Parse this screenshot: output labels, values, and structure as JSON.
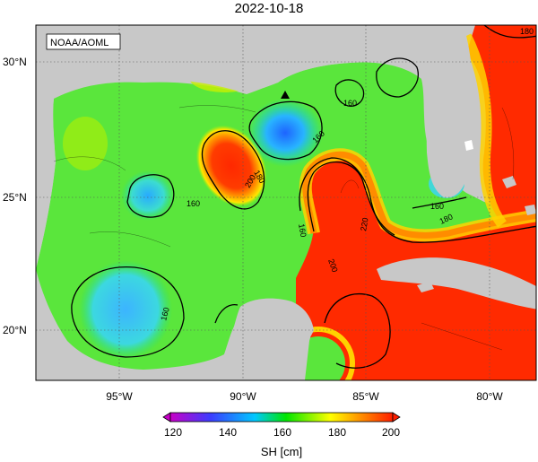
{
  "title": "2022-10-18",
  "credit": "NOAA/AOML",
  "axes": {
    "x_ticks": [
      "95°W",
      "90°W",
      "85°W",
      "80°W"
    ],
    "y_ticks": [
      "30°N",
      "25°N",
      "20°N"
    ]
  },
  "colorbar": {
    "label": "SH [cm]",
    "ticks": [
      "120",
      "140",
      "160",
      "180",
      "200"
    ],
    "range": [
      120,
      200
    ],
    "colors": [
      "#c800c8",
      "#3c3cff",
      "#00c8ff",
      "#00e600",
      "#ffff00",
      "#ff8c00",
      "#ff1e00"
    ]
  },
  "contour_labels": [
    {
      "text": "160",
      "id": "c1"
    },
    {
      "text": "160",
      "id": "c2"
    },
    {
      "text": "160",
      "id": "c3"
    },
    {
      "text": "160",
      "id": "c4"
    },
    {
      "text": "180",
      "id": "c5"
    },
    {
      "text": "200",
      "id": "c6"
    },
    {
      "text": "160",
      "id": "c7"
    },
    {
      "text": "180",
      "id": "c8"
    },
    {
      "text": "220",
      "id": "c9"
    },
    {
      "text": "200",
      "id": "c10"
    },
    {
      "text": "160",
      "id": "c11"
    },
    {
      "text": "180",
      "id": "c12"
    }
  ],
  "colors": {
    "land": "#c8c8c8",
    "frame": "#000000",
    "grid": "#555555"
  }
}
